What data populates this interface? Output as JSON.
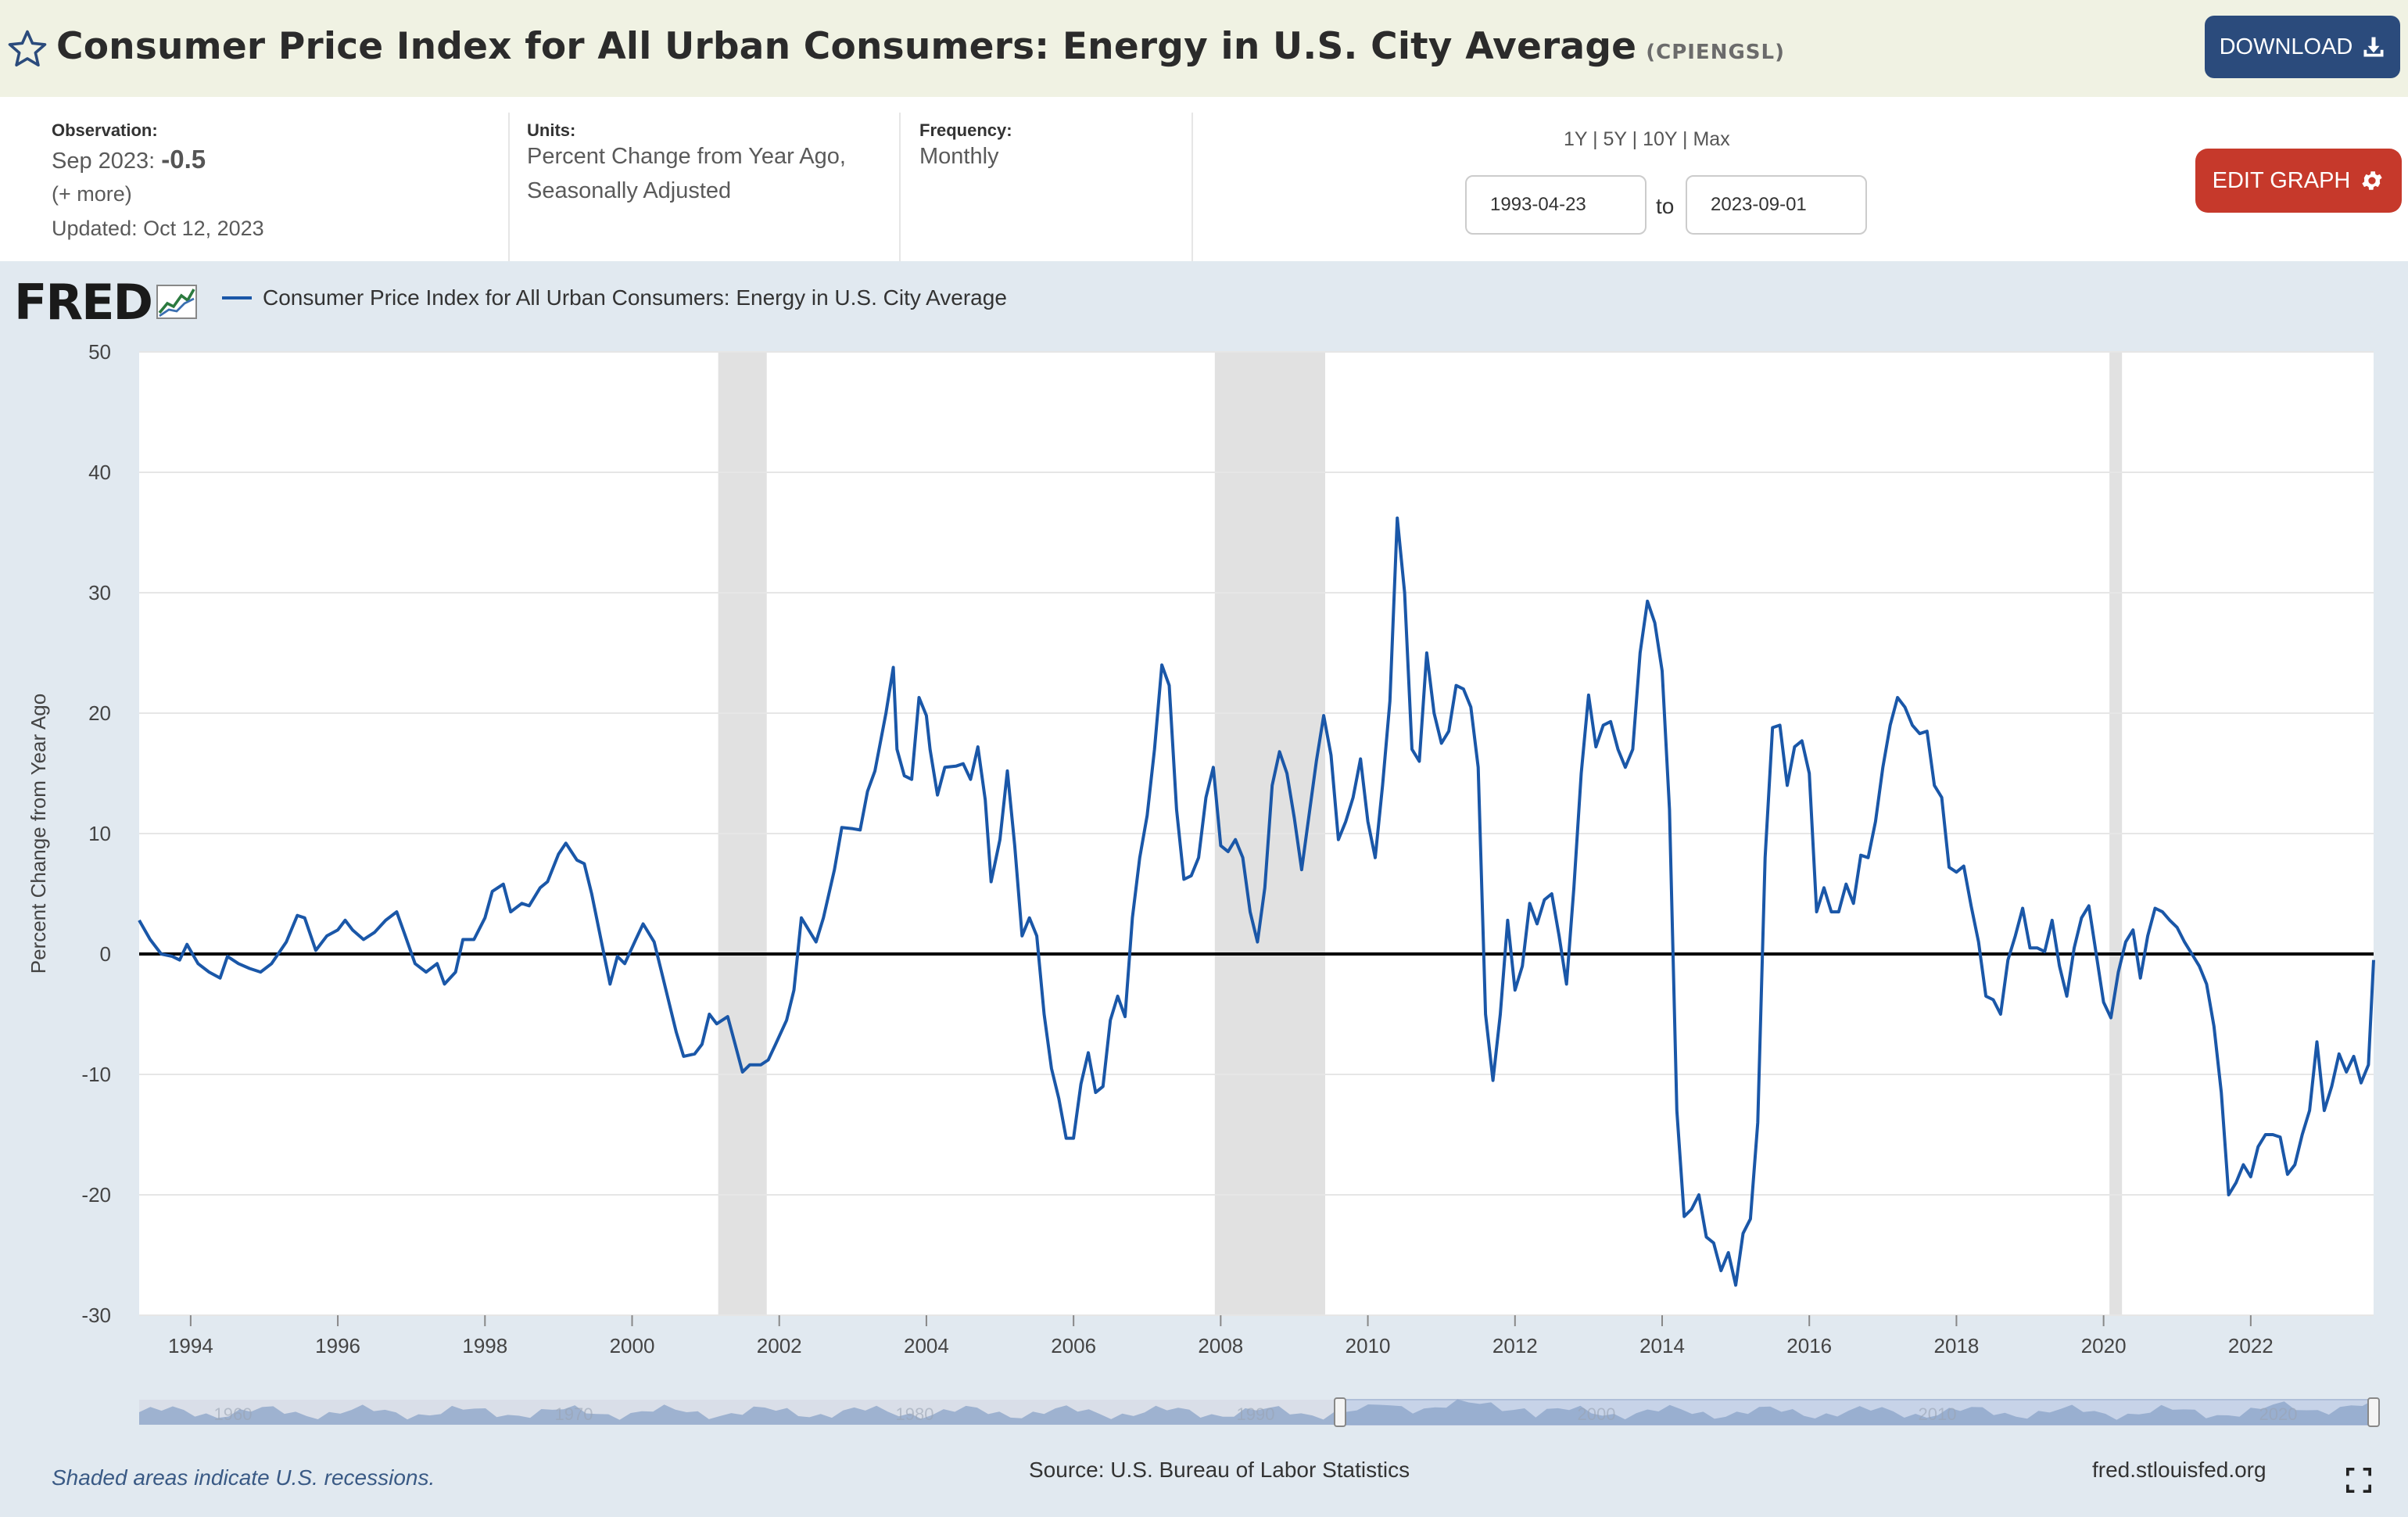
{
  "header": {
    "title": "Consumer Price Index for All Urban Consumers: Energy in U.S. City Average",
    "series_code": "(CPIENGSL)",
    "download_label": "DOWNLOAD",
    "star_icon": "star-outline-icon",
    "download_icon": "download-icon"
  },
  "info": {
    "observation_label": "Observation:",
    "observation_date": "Sep 2023:",
    "observation_value": "-0.5",
    "more_label": "(+ more)",
    "updated": "Updated: Oct 12, 2023",
    "units_label": "Units:",
    "units_line1": "Percent Change from Year Ago,",
    "units_line2": "Seasonally Adjusted",
    "frequency_label": "Frequency:",
    "frequency_value": "Monthly",
    "range_1y": "1Y",
    "range_5y": "5Y",
    "range_10y": "10Y",
    "range_max": "Max",
    "start_date": "1993-04-23",
    "to_label": "to",
    "end_date": "2023-09-01",
    "edit_graph_label": "EDIT GRAPH",
    "gear_icon": "gear-icon"
  },
  "legend": {
    "logo_text": "FRED",
    "series_label": "Consumer Price Index for All Urban Consumers: Energy in U.S. City Average",
    "line_color": "#1a57a8"
  },
  "footer": {
    "recession_note": "Shaded areas indicate U.S. recessions.",
    "source": "Source: U.S. Bureau of Labor Statistics",
    "url": "fred.stlouisfed.org",
    "fullscreen_icon": "fullscreen-icon"
  },
  "chart_data": {
    "type": "line",
    "ylabel": "Percent Change from Year Ago",
    "ylim": [
      -30,
      50
    ],
    "yticks": [
      -30,
      -20,
      -10,
      0,
      10,
      20,
      30,
      40,
      50
    ],
    "xlim": [
      1993.3,
      2023.67
    ],
    "xticks": [
      "1994",
      "1996",
      "1998",
      "2000",
      "2002",
      "2004",
      "2006",
      "2008",
      "2010",
      "2012",
      "2014",
      "2016",
      "2018",
      "2020",
      "2022"
    ],
    "grid": true,
    "zero_line": true,
    "legend_position": "top-left",
    "recessions": [
      [
        2001.17,
        2001.83
      ],
      [
        2007.92,
        2009.42
      ],
      [
        2020.08,
        2020.25
      ]
    ],
    "navigator_labels": [
      "1960",
      "1970",
      "1980",
      "1990",
      "2000",
      "2010",
      "2020"
    ],
    "series": [
      {
        "name": "Consumer Price Index for All Urban Consumers: Energy in U.S. City Average",
        "points": [
          [
            1993.3,
            2.8
          ],
          [
            1993.45,
            1.2
          ],
          [
            1993.6,
            0
          ],
          [
            1993.75,
            -0.2
          ],
          [
            1993.85,
            -0.5
          ],
          [
            1993.95,
            0.8
          ],
          [
            1994.1,
            -0.8
          ],
          [
            1994.25,
            -1.5
          ],
          [
            1994.4,
            -2
          ],
          [
            1994.5,
            -0.2
          ],
          [
            1994.65,
            -0.8
          ],
          [
            1994.8,
            -1.2
          ],
          [
            1994.95,
            -1.5
          ],
          [
            1995.1,
            -0.8
          ],
          [
            1995.3,
            1
          ],
          [
            1995.45,
            3.2
          ],
          [
            1995.55,
            3
          ],
          [
            1995.7,
            0.3
          ],
          [
            1995.85,
            1.5
          ],
          [
            1996.0,
            2
          ],
          [
            1996.1,
            2.8
          ],
          [
            1996.2,
            2
          ],
          [
            1996.35,
            1.2
          ],
          [
            1996.5,
            1.8
          ],
          [
            1996.65,
            2.8
          ],
          [
            1996.8,
            3.5
          ],
          [
            1996.9,
            1.8
          ],
          [
            1997.05,
            -0.8
          ],
          [
            1997.2,
            -1.5
          ],
          [
            1997.35,
            -0.8
          ],
          [
            1997.45,
            -2.5
          ],
          [
            1997.6,
            -1.5
          ],
          [
            1997.7,
            1.2
          ],
          [
            1997.85,
            1.2
          ],
          [
            1998.0,
            3
          ],
          [
            1998.1,
            5.2
          ],
          [
            1998.25,
            5.8
          ],
          [
            1998.35,
            3.5
          ],
          [
            1998.5,
            4.2
          ],
          [
            1998.6,
            4
          ],
          [
            1998.75,
            5.5
          ],
          [
            1998.85,
            6
          ],
          [
            1999.0,
            8.3
          ],
          [
            1999.1,
            9.2
          ],
          [
            1999.25,
            7.8
          ],
          [
            1999.35,
            7.5
          ],
          [
            1999.45,
            5
          ],
          [
            1999.6,
            0.5
          ],
          [
            1999.7,
            -2.5
          ],
          [
            1999.8,
            -0.2
          ],
          [
            1999.9,
            -0.8
          ],
          [
            2000.05,
            1.2
          ],
          [
            2000.15,
            2.5
          ],
          [
            2000.3,
            1
          ],
          [
            2000.4,
            -1.5
          ],
          [
            2000.5,
            -4
          ],
          [
            2000.6,
            -6.5
          ],
          [
            2000.7,
            -8.5
          ],
          [
            2000.85,
            -8.3
          ],
          [
            2000.95,
            -7.5
          ],
          [
            2001.05,
            -5
          ],
          [
            2001.15,
            -5.8
          ],
          [
            2001.3,
            -5.2
          ],
          [
            2001.4,
            -7.5
          ],
          [
            2001.5,
            -9.8
          ],
          [
            2001.6,
            -9.2
          ],
          [
            2001.75,
            -9.2
          ],
          [
            2001.85,
            -8.8
          ],
          [
            2001.95,
            -7.5
          ],
          [
            2002.1,
            -5.5
          ],
          [
            2002.2,
            -3
          ],
          [
            2002.3,
            3
          ],
          [
            2002.45,
            1.5
          ],
          [
            2002.5,
            1
          ],
          [
            2002.6,
            3
          ],
          [
            2002.75,
            7
          ],
          [
            2002.85,
            10.5
          ],
          [
            2003.0,
            10.4
          ],
          [
            2003.1,
            10.3
          ],
          [
            2003.2,
            13.5
          ],
          [
            2003.3,
            15.2
          ],
          [
            2003.45,
            20
          ],
          [
            2003.55,
            23.8
          ],
          [
            2003.6,
            17
          ],
          [
            2003.7,
            14.8
          ],
          [
            2003.8,
            14.5
          ],
          [
            2003.9,
            21.3
          ],
          [
            2004.0,
            19.8
          ],
          [
            2004.05,
            17
          ],
          [
            2004.15,
            13.2
          ],
          [
            2004.25,
            15.5
          ],
          [
            2004.4,
            15.6
          ],
          [
            2004.5,
            15.8
          ],
          [
            2004.6,
            14.5
          ],
          [
            2004.7,
            17.2
          ],
          [
            2004.8,
            12.8
          ],
          [
            2004.88,
            6
          ],
          [
            2005.0,
            9.5
          ],
          [
            2005.1,
            15.2
          ],
          [
            2005.2,
            9
          ],
          [
            2005.3,
            1.5
          ],
          [
            2005.4,
            3
          ],
          [
            2005.5,
            1.5
          ],
          [
            2005.6,
            -5
          ],
          [
            2005.7,
            -9.5
          ],
          [
            2005.8,
            -12
          ],
          [
            2005.9,
            -15.3
          ],
          [
            2006.0,
            -15.3
          ],
          [
            2006.1,
            -10.8
          ],
          [
            2006.2,
            -8.2
          ],
          [
            2006.3,
            -11.5
          ],
          [
            2006.4,
            -11
          ],
          [
            2006.5,
            -5.5
          ],
          [
            2006.6,
            -3.5
          ],
          [
            2006.7,
            -5.2
          ],
          [
            2006.8,
            3
          ],
          [
            2006.9,
            8
          ],
          [
            2007.0,
            11.5
          ],
          [
            2007.1,
            17
          ],
          [
            2007.2,
            24
          ],
          [
            2007.3,
            22.3
          ],
          [
            2007.4,
            12
          ],
          [
            2007.5,
            6.2
          ],
          [
            2007.6,
            6.5
          ],
          [
            2007.7,
            8
          ],
          [
            2007.8,
            13
          ],
          [
            2007.9,
            15.5
          ],
          [
            2008.0,
            9
          ],
          [
            2008.1,
            8.5
          ],
          [
            2008.2,
            9.5
          ],
          [
            2008.3,
            8
          ],
          [
            2008.4,
            3.5
          ],
          [
            2008.5,
            1
          ],
          [
            2008.6,
            5.5
          ],
          [
            2008.7,
            14
          ],
          [
            2008.8,
            16.8
          ],
          [
            2008.9,
            15
          ],
          [
            2009.0,
            11.3
          ],
          [
            2009.1,
            7
          ],
          [
            2009.2,
            11.5
          ],
          [
            2009.3,
            16
          ],
          [
            2009.4,
            19.8
          ],
          [
            2009.5,
            16.5
          ],
          [
            2009.6,
            9.5
          ],
          [
            2009.7,
            11
          ],
          [
            2009.8,
            13
          ],
          [
            2009.9,
            16.2
          ],
          [
            2010.0,
            11
          ],
          [
            2010.1,
            8
          ],
          [
            2010.2,
            14
          ],
          [
            2010.3,
            21
          ],
          [
            2010.4,
            36.2
          ],
          [
            2010.5,
            30
          ],
          [
            2010.6,
            17
          ],
          [
            2010.7,
            16
          ],
          [
            2010.8,
            25
          ],
          [
            2010.9,
            20
          ],
          [
            2011.0,
            17.5
          ],
          [
            2011.1,
            18.5
          ],
          [
            2011.2,
            22.3
          ],
          [
            2011.3,
            22
          ],
          [
            2011.4,
            20.5
          ],
          [
            2011.5,
            15.5
          ],
          [
            2011.6,
            -5
          ],
          [
            2011.7,
            -10.5
          ],
          [
            2011.8,
            -5
          ],
          [
            2011.9,
            2.8
          ],
          [
            2012.0,
            -3
          ],
          [
            2012.1,
            -1
          ],
          [
            2012.2,
            4.2
          ],
          [
            2012.3,
            2.5
          ],
          [
            2012.4,
            4.5
          ],
          [
            2012.5,
            5
          ],
          [
            2012.6,
            1.5
          ],
          [
            2012.7,
            -2.5
          ],
          [
            2012.8,
            5.5
          ],
          [
            2012.9,
            15
          ],
          [
            2013.0,
            21.5
          ],
          [
            2013.1,
            17.2
          ],
          [
            2013.2,
            19
          ],
          [
            2013.3,
            19.3
          ],
          [
            2013.4,
            17
          ],
          [
            2013.5,
            15.5
          ],
          [
            2013.6,
            17
          ],
          [
            2013.7,
            25
          ],
          [
            2013.8,
            29.3
          ],
          [
            2013.9,
            27.5
          ],
          [
            2014.0,
            23.5
          ],
          [
            2014.1,
            12
          ],
          [
            2014.2,
            -13
          ],
          [
            2014.3,
            -21.8
          ],
          [
            2014.4,
            -21.2
          ],
          [
            2014.5,
            -20
          ],
          [
            2014.6,
            -23.5
          ],
          [
            2014.7,
            -24
          ],
          [
            2014.8,
            -26.3
          ],
          [
            2014.9,
            -24.8
          ],
          [
            2015.0,
            -27.5
          ],
          [
            2015.1,
            -23.2
          ],
          [
            2015.2,
            -22
          ],
          [
            2015.3,
            -14
          ],
          [
            2015.4,
            8
          ],
          [
            2015.5,
            18.8
          ],
          [
            2015.6,
            19
          ],
          [
            2015.7,
            14
          ],
          [
            2015.8,
            17.2
          ],
          [
            2015.9,
            17.7
          ],
          [
            2016.0,
            15
          ],
          [
            2016.1,
            3.5
          ],
          [
            2016.2,
            5.5
          ],
          [
            2016.3,
            3.5
          ],
          [
            2016.4,
            3.5
          ],
          [
            2016.5,
            5.8
          ],
          [
            2016.6,
            4.2
          ],
          [
            2016.7,
            8.2
          ],
          [
            2016.8,
            8
          ],
          [
            2016.9,
            11
          ],
          [
            2017.0,
            15.5
          ],
          [
            2017.1,
            19
          ],
          [
            2017.2,
            21.3
          ],
          [
            2017.3,
            20.5
          ],
          [
            2017.4,
            19
          ],
          [
            2017.5,
            18.3
          ],
          [
            2017.6,
            18.5
          ],
          [
            2017.7,
            14
          ],
          [
            2017.8,
            13
          ],
          [
            2017.9,
            7.2
          ],
          [
            2018.0,
            6.8
          ],
          [
            2018.1,
            7.3
          ],
          [
            2018.2,
            4
          ],
          [
            2018.3,
            1
          ],
          [
            2018.4,
            -3.5
          ],
          [
            2018.5,
            -3.8
          ],
          [
            2018.6,
            -5
          ],
          [
            2018.7,
            -0.5
          ],
          [
            2018.8,
            1.5
          ],
          [
            2018.9,
            3.8
          ],
          [
            2019.0,
            0.5
          ],
          [
            2019.1,
            0.5
          ],
          [
            2019.2,
            0.2
          ],
          [
            2019.3,
            2.8
          ],
          [
            2019.4,
            -1
          ],
          [
            2019.5,
            -3.5
          ],
          [
            2019.6,
            0.5
          ],
          [
            2019.7,
            3
          ],
          [
            2019.8,
            4
          ],
          [
            2019.9,
            0
          ],
          [
            2020.0,
            -4
          ],
          [
            2020.1,
            -5.3
          ],
          [
            2020.2,
            -1.5
          ],
          [
            2020.3,
            1
          ],
          [
            2020.4,
            2
          ],
          [
            2020.5,
            -2
          ],
          [
            2020.6,
            1.5
          ],
          [
            2020.7,
            3.8
          ],
          [
            2020.8,
            3.5
          ],
          [
            2020.9,
            2.8
          ],
          [
            2021.0,
            2.2
          ],
          [
            2021.1,
            1
          ],
          [
            2021.2,
            0
          ],
          [
            2021.3,
            -1
          ],
          [
            2021.4,
            -2.5
          ],
          [
            2021.5,
            -6
          ],
          [
            2021.6,
            -11.5
          ],
          [
            2021.7,
            -20
          ],
          [
            2021.8,
            -19
          ],
          [
            2021.9,
            -17.5
          ],
          [
            2022.0,
            -18.5
          ],
          [
            2022.1,
            -16
          ],
          [
            2022.2,
            -15
          ],
          [
            2022.3,
            -15
          ],
          [
            2022.4,
            -15.2
          ],
          [
            2022.5,
            -18.3
          ],
          [
            2022.6,
            -17.5
          ],
          [
            2022.7,
            -15
          ],
          [
            2022.8,
            -13
          ],
          [
            2022.9,
            -7.3
          ],
          [
            2023.0,
            -13
          ],
          [
            2023.1,
            -11
          ],
          [
            2023.2,
            -8.3
          ],
          [
            2023.3,
            -9.8
          ],
          [
            2023.4,
            -8.5
          ],
          [
            2023.5,
            -10.7
          ],
          [
            2023.6,
            -9.2
          ],
          [
            2023.67,
            -0.5
          ]
        ]
      }
    ]
  }
}
